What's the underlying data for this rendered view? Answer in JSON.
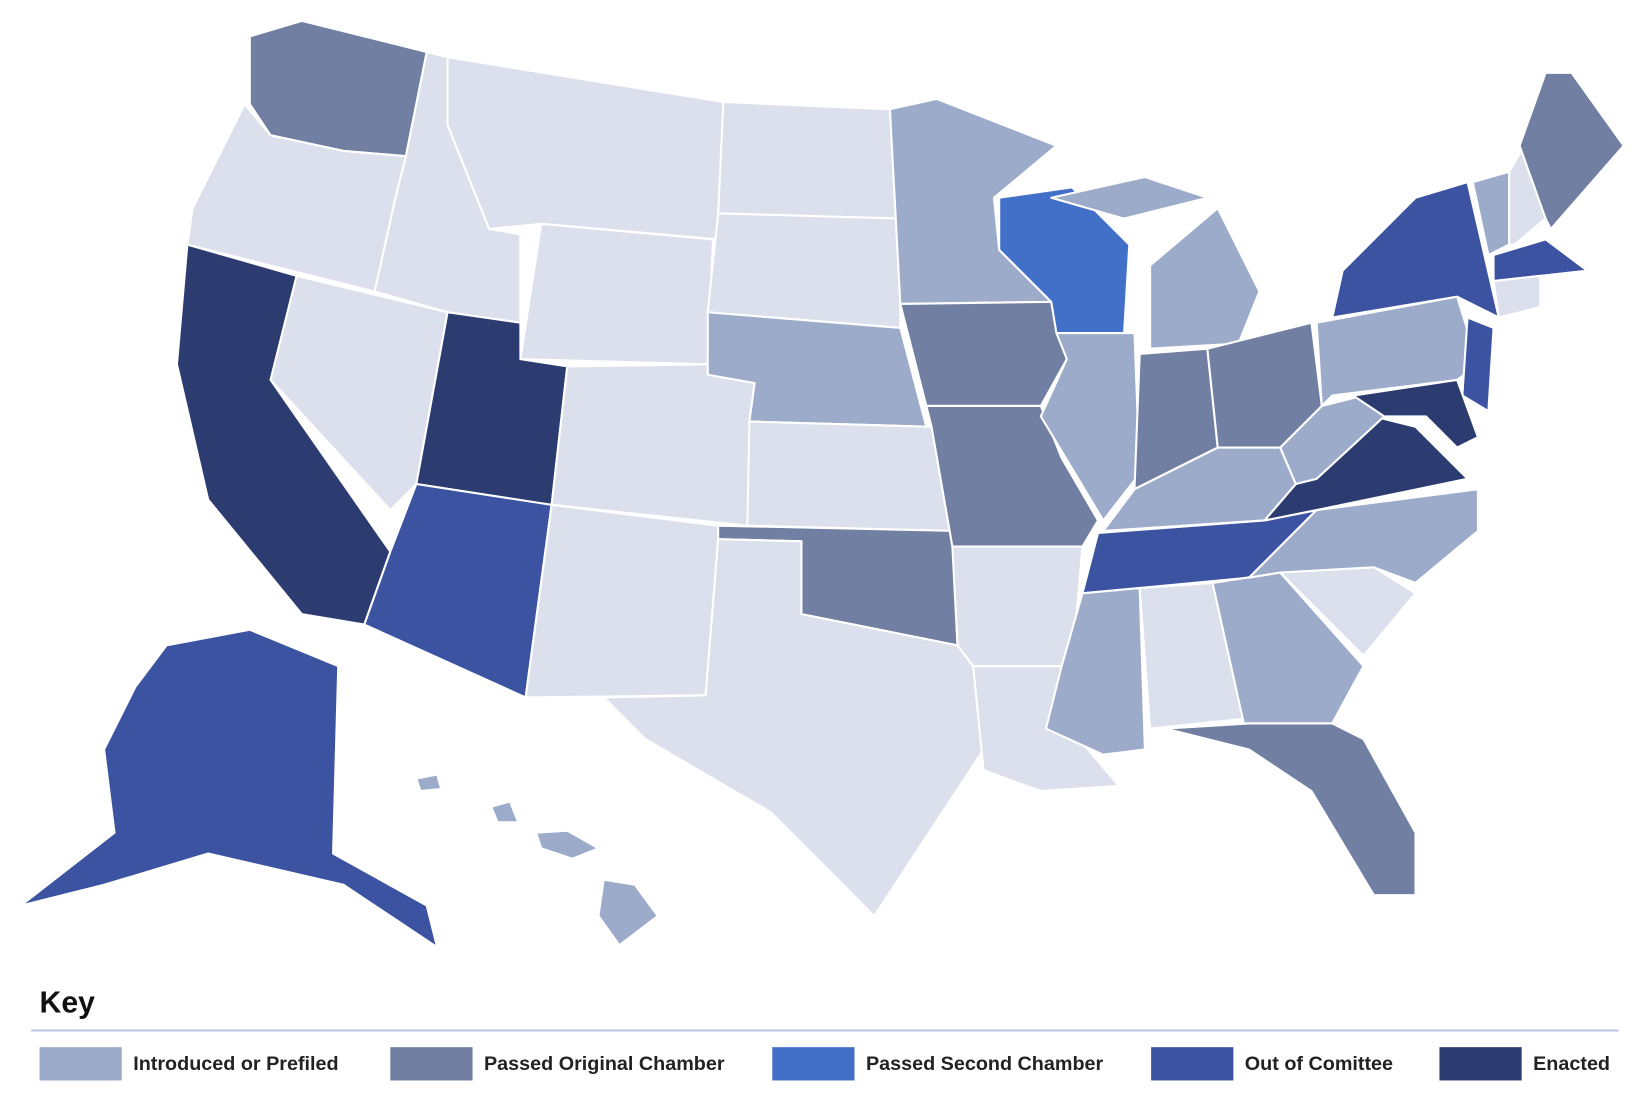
{
  "base_color": "#dce0ec",
  "key": {
    "title": "Key",
    "items": [
      {
        "label": "Introduced or Prefiled",
        "color": "#9dabcb"
      },
      {
        "label": "Passed Original Chamber",
        "color": "#717fa3"
      },
      {
        "label": "Passed Second Chamber",
        "color": "#4270c8"
      },
      {
        "label": "Out of Comittee",
        "color": "#3b53a1"
      },
      {
        "label": "Enacted",
        "color": "#2d3c70"
      }
    ]
  }
}
